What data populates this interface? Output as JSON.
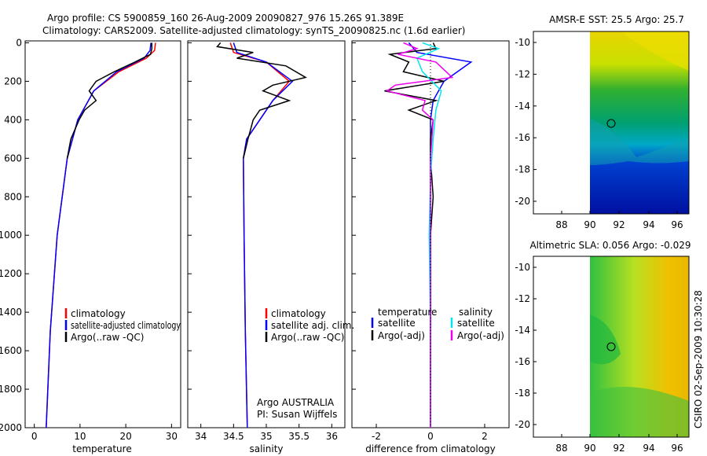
{
  "header": {
    "title_line1": "Argo profile: CS 5900859_160 26-Aug-2009 20090827_976 15.26S 91.389E",
    "title_line2": "Climatology: CARS2009. Satellite-adjusted climatology: synTS_20090825.nc (1.6d earlier)"
  },
  "footer": {
    "stamp": "CSIRO 02-Sep-2009 10:30:28"
  },
  "colors": {
    "climatology": "#ff0000",
    "satellite": "#0000ff",
    "argo": "#000000",
    "salinity_satellite": "#00e5ee",
    "salinity_argo": "#ee00ee"
  },
  "chart_data": [
    {
      "id": "temperature",
      "type": "line",
      "xlabel": "temperature",
      "ylabel": "",
      "xlim": [
        -2,
        32
      ],
      "ylim": [
        2000,
        -10
      ],
      "xticks": [
        "0",
        "10",
        "20",
        "30"
      ],
      "yticks": [
        "0",
        "200",
        "400",
        "600",
        "800",
        "1000",
        "1200",
        "1400",
        "1600",
        "1800",
        "2000"
      ],
      "legend": [
        "climatology",
        "satellite-adjusted climatology",
        "Argo(..raw -QC)"
      ],
      "series": [
        {
          "name": "climatology",
          "color": "#ff0000",
          "depth": [
            0,
            40,
            80,
            150,
            250,
            400,
            600,
            1000,
            1500,
            2000
          ],
          "values": [
            26.5,
            26.3,
            24.5,
            18.5,
            13.0,
            9.5,
            7.2,
            5.0,
            3.5,
            2.6
          ]
        },
        {
          "name": "satellite-adjusted climatology",
          "color": "#0000ff",
          "depth": [
            0,
            40,
            80,
            150,
            250,
            400,
            600,
            1000,
            1500,
            2000
          ],
          "values": [
            25.5,
            25.3,
            24.0,
            18.0,
            13.0,
            9.5,
            7.2,
            5.0,
            3.5,
            2.6
          ]
        },
        {
          "name": "Argo",
          "color": "#000000",
          "depth": [
            0,
            30,
            60,
            100,
            150,
            200,
            250,
            300,
            350,
            400,
            500,
            600
          ],
          "values": [
            25.7,
            25.7,
            25.4,
            22.0,
            17.5,
            13.5,
            12.0,
            13.5,
            11.0,
            9.8,
            8.0,
            7.2
          ]
        }
      ]
    },
    {
      "id": "salinity",
      "type": "line",
      "xlabel": "salinity",
      "xlim": [
        33.8,
        36.2
      ],
      "ylim": [
        2000,
        -10
      ],
      "xticks": [
        "34",
        "34.5",
        "35",
        "35.5",
        "36"
      ],
      "legend": [
        "climatology",
        "satellite adj. clim.",
        "Argo(..raw -QC)"
      ],
      "annotation": [
        "Argo AUSTRALIA",
        "PI: Susan Wijffels"
      ],
      "series": [
        {
          "name": "climatology",
          "color": "#ff0000",
          "depth": [
            0,
            50,
            100,
            200,
            300,
            400,
            500,
            600,
            1000,
            1500,
            2000
          ],
          "values": [
            34.45,
            34.5,
            35.0,
            35.35,
            35.1,
            34.9,
            34.7,
            34.65,
            34.66,
            34.68,
            34.71
          ]
        },
        {
          "name": "satellite adj. clim.",
          "color": "#0000ff",
          "depth": [
            0,
            50,
            100,
            200,
            300,
            400,
            500,
            600,
            1000,
            1500,
            2000
          ],
          "values": [
            34.5,
            34.55,
            35.0,
            35.4,
            35.1,
            34.9,
            34.7,
            34.65,
            34.66,
            34.68,
            34.71
          ]
        },
        {
          "name": "Argo",
          "color": "#000000",
          "depth": [
            0,
            20,
            50,
            80,
            120,
            180,
            220,
            250,
            300,
            350,
            400,
            500,
            600
          ],
          "values": [
            34.3,
            34.25,
            34.8,
            34.55,
            35.3,
            35.6,
            35.1,
            34.95,
            35.35,
            34.9,
            34.8,
            34.72,
            34.65
          ]
        }
      ]
    },
    {
      "id": "difference",
      "type": "line",
      "xlabel": "difference from climatology",
      "xlim": [
        -2.9,
        2.9
      ],
      "ylim": [
        2000,
        -10
      ],
      "xticks": [
        "-2",
        "0",
        "2"
      ],
      "legend_left_header": "temperature",
      "legend_right_header": "salinity",
      "legend": [
        "satellite",
        "Argo(-adj)",
        "satellite",
        "Argo(-adj)"
      ],
      "series": [
        {
          "name": "temperature satellite",
          "color": "#0000ff",
          "depth": [
            0,
            50,
            100,
            200,
            300,
            400,
            600,
            1000,
            1500,
            2000
          ],
          "values": [
            -0.8,
            -0.5,
            1.5,
            0.5,
            0.1,
            0,
            0,
            0,
            0,
            0
          ]
        },
        {
          "name": "temperature Argo(-adj)",
          "color": "#000000",
          "depth": [
            0,
            30,
            60,
            100,
            150,
            200,
            250,
            300,
            350,
            400,
            500,
            600,
            800,
            1000,
            1500,
            2000
          ],
          "values": [
            0.1,
            0.2,
            -1.5,
            -0.8,
            -1.0,
            0.5,
            -1.7,
            0.2,
            -0.8,
            0.1,
            0,
            0,
            0.1,
            0,
            0,
            0
          ]
        },
        {
          "name": "salinity satellite",
          "color": "#00e5ee",
          "depth": [
            0,
            30,
            80,
            150,
            250,
            350,
            500,
            700,
            1000,
            1500,
            2000
          ],
          "values": [
            -0.3,
            0.3,
            -0.5,
            -0.3,
            0.4,
            0.2,
            0.1,
            0,
            -0.05,
            0,
            0
          ]
        },
        {
          "name": "salinity Argo(-adj)",
          "color": "#ee00ee",
          "depth": [
            0,
            30,
            60,
            100,
            180,
            220,
            250,
            300,
            350,
            400,
            600,
            1000,
            1500,
            2000
          ],
          "values": [
            -1.0,
            -0.5,
            -1.2,
            0.2,
            0.8,
            -1.3,
            -1.6,
            -0.2,
            -0.3,
            0.1,
            0,
            0,
            0,
            0
          ]
        }
      ]
    },
    {
      "id": "sst_map",
      "type": "heatmap",
      "title": "AMSR-E SST: 25.5 Argo: 25.7",
      "xticks": [
        "88",
        "90",
        "92",
        "94",
        "96"
      ],
      "yticks": [
        "-10",
        "-12",
        "-14",
        "-16",
        "-18",
        "-20"
      ],
      "marker": {
        "lon": 91.389,
        "lat": -15.26
      }
    },
    {
      "id": "sla_map",
      "type": "heatmap",
      "title": "Altimetric SLA: 0.056 Argo: -0.029",
      "xticks": [
        "88",
        "90",
        "92",
        "94",
        "96"
      ],
      "yticks": [
        "-10",
        "-12",
        "-14",
        "-16",
        "-18",
        "-20"
      ],
      "marker": {
        "lon": 91.389,
        "lat": -15.26
      }
    }
  ]
}
